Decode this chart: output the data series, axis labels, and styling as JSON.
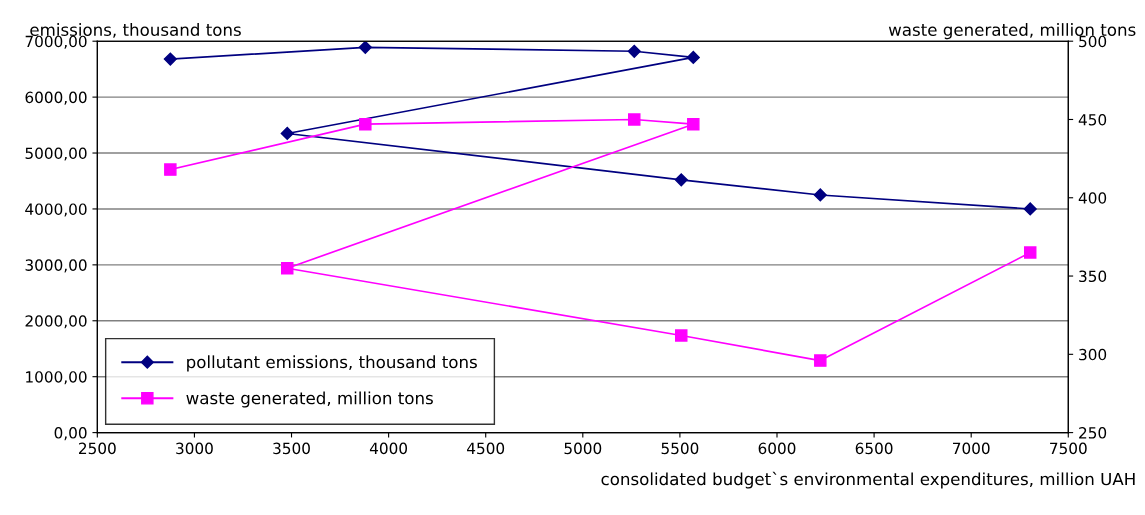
{
  "chart_data": {
    "type": "line",
    "xlabel": "consolidated budget`s environmental expenditures, million UAH",
    "ylabel": "emissions, thousand tons",
    "y2label": "waste generated, million tons",
    "xlim": [
      2500,
      7500
    ],
    "xticks": [
      2500,
      3000,
      3500,
      4000,
      4500,
      5000,
      5500,
      6000,
      6500,
      7000,
      7500
    ],
    "ylim": [
      0,
      7000
    ],
    "yticks": [
      {
        "value": 0,
        "label": "0,00"
      },
      {
        "value": 1000,
        "label": "1000,00"
      },
      {
        "value": 2000,
        "label": "2000,00"
      },
      {
        "value": 3000,
        "label": "3000,00"
      },
      {
        "value": 4000,
        "label": "4000,00"
      },
      {
        "value": 5000,
        "label": "5000,00"
      },
      {
        "value": 6000,
        "label": "6000,00"
      },
      {
        "value": 7000,
        "label": "7000,00"
      }
    ],
    "y2lim": [
      250,
      500
    ],
    "y2ticks": [
      250,
      300,
      350,
      400,
      450,
      500
    ],
    "grid": "y",
    "legend": "bottom left",
    "line_style": "solid",
    "series": [
      {
        "name": "pollutant emissions, thousand tons",
        "color": "#000080",
        "marker": "diamond",
        "x": [
          2876,
          3880,
          5265,
          5569,
          3478,
          5507,
          6223,
          7304
        ],
        "values": [
          6680,
          6890,
          6820,
          6710,
          5350,
          4520,
          4250,
          4000
        ]
      },
      {
        "name": "waste generated, million tons",
        "color": "#ff00ff",
        "marker": "square",
        "axis": "y2",
        "x": [
          2876,
          3880,
          5265,
          5569,
          3478,
          5507,
          6223,
          7304
        ],
        "values": [
          418,
          447,
          450,
          447,
          355,
          312,
          296,
          365
        ]
      }
    ]
  }
}
